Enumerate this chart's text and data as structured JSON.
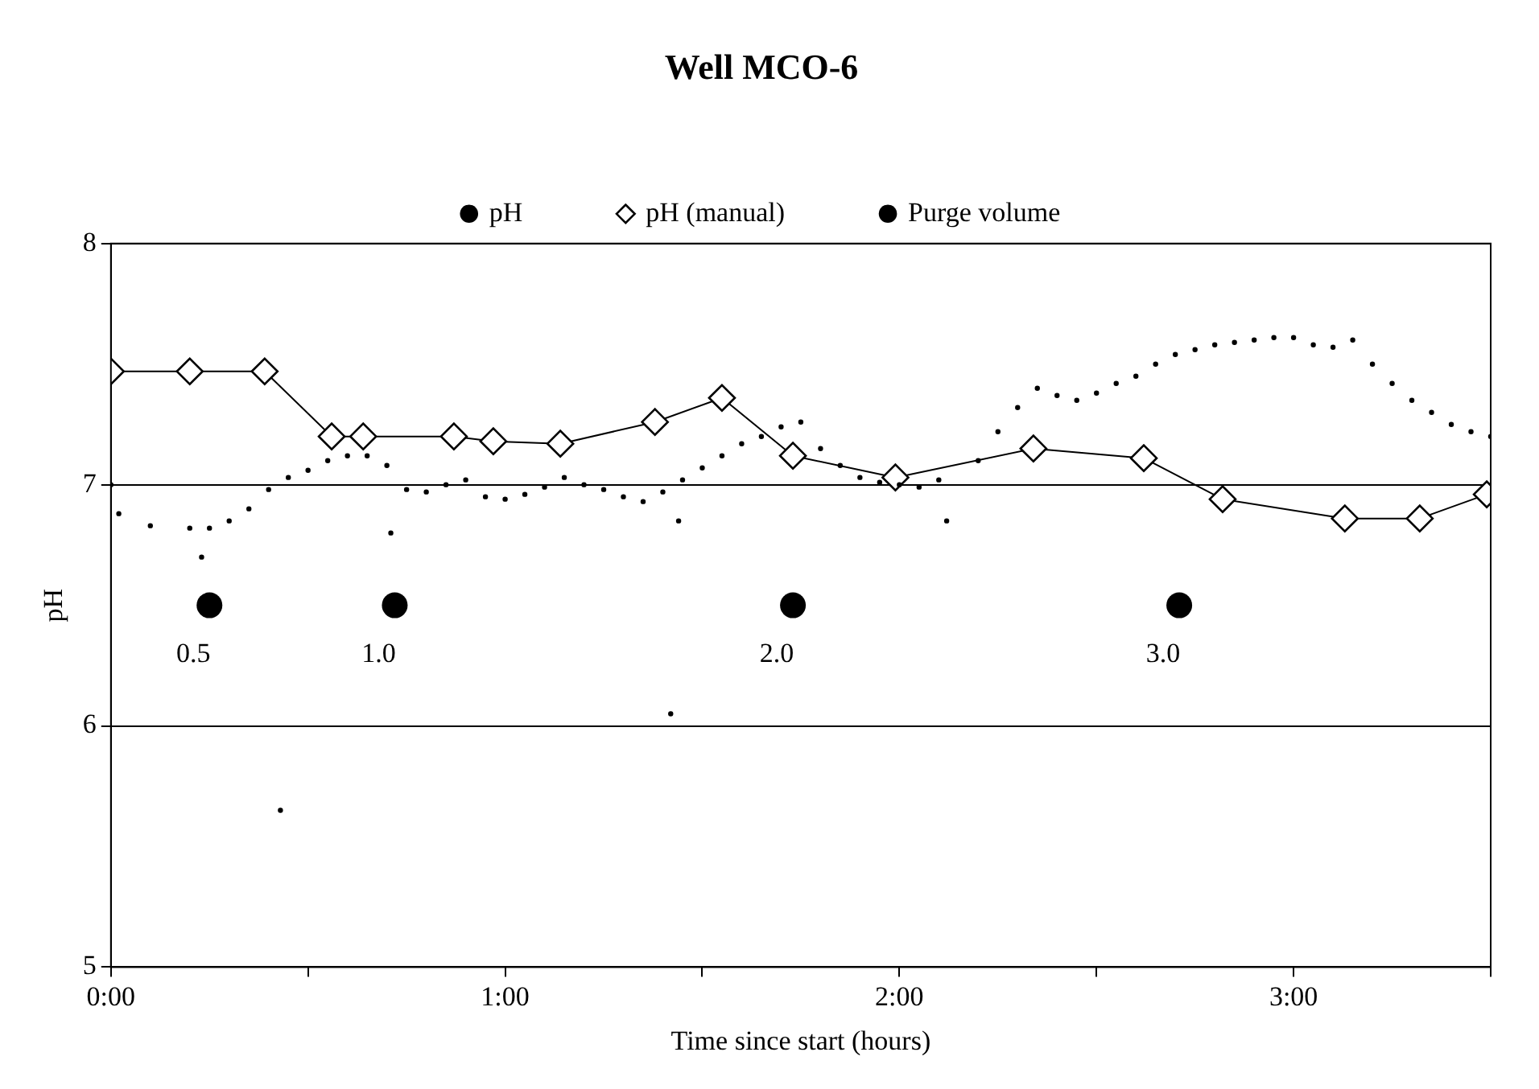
{
  "chart_data": {
    "type": "scatter",
    "title": "Well MCO-6",
    "xlabel": "Time since start (hours)",
    "ylabel": "pH",
    "xlim": [
      0,
      3.5
    ],
    "ylim": [
      5,
      8
    ],
    "xticks": [
      {
        "value": 0,
        "label": "0:00"
      },
      {
        "value": 0.5,
        "label": null
      },
      {
        "value": 1,
        "label": "1:00"
      },
      {
        "value": 1.5,
        "label": null
      },
      {
        "value": 2,
        "label": "2:00"
      },
      {
        "value": 2.5,
        "label": null
      },
      {
        "value": 3,
        "label": "3:00"
      },
      {
        "value": 3.5,
        "label": null
      }
    ],
    "yticks": [
      5,
      6,
      7,
      8
    ],
    "grid": "y",
    "legend": "top",
    "series": [
      {
        "name": "pH",
        "marker": "circle",
        "color": "#000000",
        "x": [
          0,
          0.02,
          0.1,
          0.2,
          0.23,
          0.25,
          0.3,
          0.35,
          0.4,
          0.43,
          0.45,
          0.5,
          0.55,
          0.6,
          0.65,
          0.7,
          0.71,
          0.75,
          0.8,
          0.85,
          0.9,
          0.95,
          1.0,
          1.05,
          1.1,
          1.15,
          1.2,
          1.25,
          1.3,
          1.35,
          1.4,
          1.42,
          1.44,
          1.45,
          1.5,
          1.55,
          1.6,
          1.65,
          1.7,
          1.75,
          1.8,
          1.85,
          1.9,
          1.95,
          2.0,
          2.05,
          2.1,
          2.12,
          2.2,
          2.25,
          2.3,
          2.35,
          2.4,
          2.45,
          2.5,
          2.55,
          2.6,
          2.65,
          2.7,
          2.75,
          2.8,
          2.85,
          2.9,
          2.95,
          3.0,
          3.05,
          3.1,
          3.15,
          3.2,
          3.25,
          3.3,
          3.35,
          3.4,
          3.45,
          3.5
        ],
        "values": [
          7.0,
          6.88,
          6.83,
          6.82,
          6.7,
          6.82,
          6.85,
          6.9,
          6.98,
          5.65,
          7.03,
          7.06,
          7.1,
          7.12,
          7.12,
          7.08,
          6.8,
          6.98,
          6.97,
          7.0,
          7.02,
          6.95,
          6.94,
          6.96,
          6.99,
          7.03,
          7.0,
          6.98,
          6.95,
          6.93,
          6.97,
          6.05,
          6.85,
          7.02,
          7.07,
          7.12,
          7.17,
          7.2,
          7.24,
          7.26,
          7.15,
          7.08,
          7.03,
          7.01,
          7.0,
          6.99,
          7.02,
          6.85,
          7.1,
          7.22,
          7.32,
          7.4,
          7.37,
          7.35,
          7.38,
          7.42,
          7.45,
          7.5,
          7.54,
          7.56,
          7.58,
          7.59,
          7.6,
          7.61,
          7.61,
          7.58,
          7.57,
          7.6,
          7.5,
          7.42,
          7.35,
          7.3,
          7.25,
          7.22,
          7.2
        ]
      },
      {
        "name": "pH (manual)",
        "type": "line",
        "marker": "diamond",
        "color": "#000000",
        "x": [
          0,
          0.2,
          0.39,
          0.56,
          0.64,
          0.87,
          0.97,
          1.14,
          1.38,
          1.55,
          1.73,
          1.99,
          2.34,
          2.62,
          2.82,
          3.13,
          3.32,
          3.49
        ],
        "values": [
          7.47,
          7.47,
          7.47,
          7.2,
          7.2,
          7.2,
          7.18,
          7.17,
          7.26,
          7.36,
          7.12,
          7.03,
          7.15,
          7.11,
          6.94,
          6.86,
          6.86,
          6.96
        ]
      },
      {
        "name": "Purge volume",
        "marker": "circle",
        "color": "#000000",
        "x": [
          0.25,
          0.72,
          1.73,
          2.71
        ],
        "values": [
          6.5,
          6.5,
          6.5,
          6.5
        ]
      }
    ],
    "annotations": [
      {
        "text": "0.5",
        "x": 0.25,
        "y": 6.5
      },
      {
        "text": "1.0",
        "x": 0.72,
        "y": 6.5
      },
      {
        "text": "2.0",
        "x": 1.73,
        "y": 6.5
      },
      {
        "text": "3.0",
        "x": 2.71,
        "y": 6.5
      }
    ]
  }
}
